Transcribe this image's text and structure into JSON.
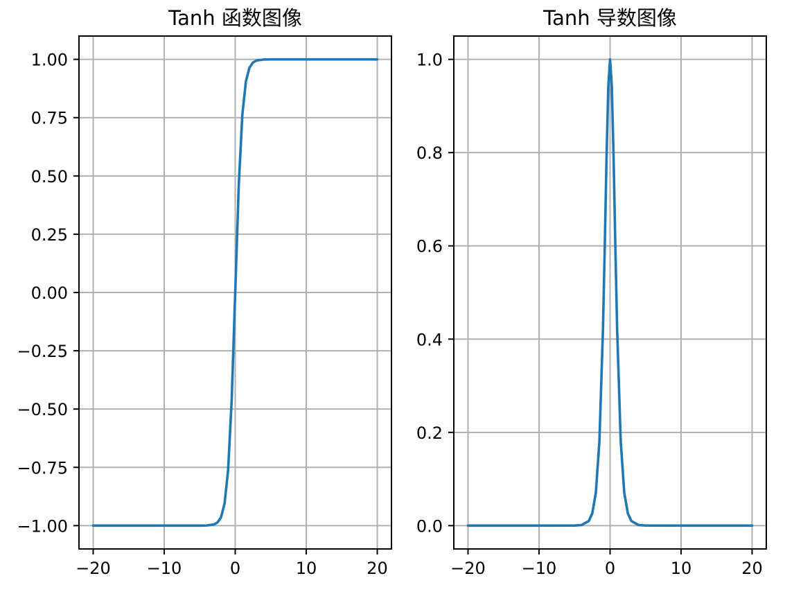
{
  "figure": {
    "background": "#ffffff",
    "line_color": "#1f77b4",
    "grid_color": "#b0b0b0"
  },
  "chart_data": [
    {
      "type": "line",
      "title": "Tanh 函数图像",
      "xlabel": "",
      "ylabel": "",
      "xlim": [
        -22,
        22
      ],
      "ylim": [
        -1.1,
        1.1
      ],
      "grid": true,
      "xticks": [
        -20,
        -10,
        0,
        10,
        20
      ],
      "xtick_labels": [
        "−20",
        "−10",
        "0",
        "10",
        "20"
      ],
      "yticks": [
        -1.0,
        -0.75,
        -0.5,
        -0.25,
        0.0,
        0.25,
        0.5,
        0.75,
        1.0
      ],
      "ytick_labels": [
        "−1.00",
        "−0.75",
        "−0.50",
        "−0.25",
        "0.00",
        "0.25",
        "0.50",
        "0.75",
        "1.00"
      ],
      "series": [
        {
          "x": [
            -20,
            -10,
            -5,
            -4,
            -3,
            -2.5,
            -2,
            -1.5,
            -1,
            -0.5,
            0,
            0.5,
            1,
            1.5,
            2,
            2.5,
            3,
            4,
            5,
            10,
            20
          ],
          "y": [
            -1.0,
            -1.0,
            -0.9999,
            -0.9993,
            -0.9951,
            -0.9866,
            -0.964,
            -0.9051,
            -0.7616,
            -0.4621,
            0.0,
            0.4621,
            0.7616,
            0.9051,
            0.964,
            0.9866,
            0.9951,
            0.9993,
            0.9999,
            1.0,
            1.0
          ]
        }
      ]
    },
    {
      "type": "line",
      "title": "Tanh 导数图像",
      "xlabel": "",
      "ylabel": "",
      "xlim": [
        -22,
        22
      ],
      "ylim": [
        -0.05,
        1.05
      ],
      "grid": true,
      "xticks": [
        -20,
        -10,
        0,
        10,
        20
      ],
      "xtick_labels": [
        "−20",
        "−10",
        "0",
        "10",
        "20"
      ],
      "yticks": [
        0.0,
        0.2,
        0.4,
        0.6,
        0.8,
        1.0
      ],
      "ytick_labels": [
        "0.0",
        "0.2",
        "0.4",
        "0.6",
        "0.8",
        "1.0"
      ],
      "series": [
        {
          "x": [
            -20,
            -10,
            -5,
            -4,
            -3,
            -2.5,
            -2,
            -1.5,
            -1,
            -0.75,
            -0.5,
            -0.25,
            0,
            0.25,
            0.5,
            0.75,
            1,
            1.5,
            2,
            2.5,
            3,
            4,
            5,
            10,
            20
          ],
          "y": [
            0.0,
            0.0,
            0.0002,
            0.0013,
            0.0099,
            0.0266,
            0.0707,
            0.1807,
            0.42,
            0.5953,
            0.7864,
            0.9413,
            1.0,
            0.9413,
            0.7864,
            0.5953,
            0.42,
            0.1807,
            0.0707,
            0.0266,
            0.0099,
            0.0013,
            0.0002,
            0.0,
            0.0
          ]
        }
      ]
    }
  ]
}
